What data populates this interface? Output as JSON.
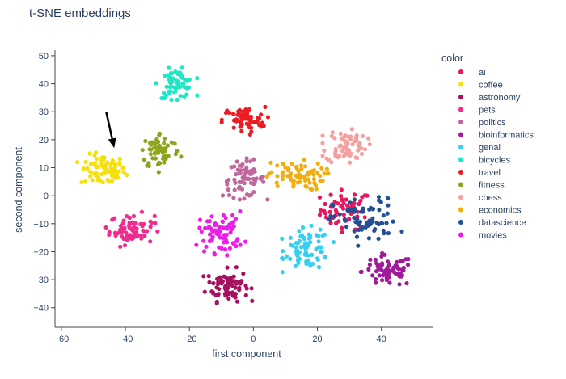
{
  "chart_data": {
    "type": "scatter",
    "title": "t-SNE embeddings",
    "xlabel": "first component",
    "ylabel": "second component",
    "xlim": [
      -62,
      56
    ],
    "ylim": [
      -47,
      52
    ],
    "xticks": [
      -60,
      -40,
      -20,
      0,
      20,
      40
    ],
    "yticks": [
      -40,
      -30,
      -20,
      -10,
      0,
      10,
      20,
      30,
      40,
      50
    ],
    "grid": false,
    "legend": {
      "title": "color",
      "position": "right"
    },
    "series": [
      {
        "name": "ai",
        "color": "#e8175d",
        "clusters": [
          {
            "cx": 29,
            "cy": -5,
            "sx": 4,
            "sy": 3.5,
            "n": 55
          }
        ]
      },
      {
        "name": "coffee",
        "color": "#f5e10a",
        "clusters": [
          {
            "cx": -47,
            "cy": 9,
            "sx": 3.5,
            "sy": 2.8,
            "n": 75
          }
        ]
      },
      {
        "name": "astronomy",
        "color": "#a5115e",
        "clusters": [
          {
            "cx": -8,
            "cy": -32,
            "sx": 3.3,
            "sy": 2.8,
            "n": 80
          }
        ]
      },
      {
        "name": "pets",
        "color": "#ee2d8f",
        "clusters": [
          {
            "cx": -38,
            "cy": -12,
            "sx": 3.5,
            "sy": 2.7,
            "n": 70
          }
        ]
      },
      {
        "name": "politics",
        "color": "#c0689e",
        "clusters": [
          {
            "cx": -3,
            "cy": 6,
            "sx": 3.3,
            "sy": 3.2,
            "n": 65
          }
        ]
      },
      {
        "name": "bioinformatics",
        "color": "#9e1b9b",
        "clusters": [
          {
            "cx": 42,
            "cy": -27,
            "sx": 4,
            "sy": 2.8,
            "n": 70
          }
        ]
      },
      {
        "name": "genai",
        "color": "#33d0f2",
        "clusters": [
          {
            "cx": 17,
            "cy": -19,
            "sx": 3.5,
            "sy": 3.6,
            "n": 75
          }
        ]
      },
      {
        "name": "bicycles",
        "color": "#1fe6c4",
        "clusters": [
          {
            "cx": -24,
            "cy": 40,
            "sx": 2.8,
            "sy": 2.5,
            "n": 65
          }
        ]
      },
      {
        "name": "travel",
        "color": "#ea1d25",
        "clusters": [
          {
            "cx": -3,
            "cy": 27,
            "sx": 3.3,
            "sy": 2.3,
            "n": 60
          }
        ]
      },
      {
        "name": "fitness",
        "color": "#8ea41f",
        "clusters": [
          {
            "cx": -29,
            "cy": 16,
            "sx": 3,
            "sy": 3.3,
            "n": 65
          }
        ]
      },
      {
        "name": "chess",
        "color": "#f3a09f",
        "clusters": [
          {
            "cx": 29,
            "cy": 18,
            "sx": 3.2,
            "sy": 3.2,
            "n": 70
          }
        ]
      },
      {
        "name": "economics",
        "color": "#f2ad0f",
        "clusters": [
          {
            "cx": 13,
            "cy": 7,
            "sx": 4.5,
            "sy": 2.5,
            "n": 70
          }
        ]
      },
      {
        "name": "datascience",
        "color": "#234f94",
        "clusters": [
          {
            "cx": 35,
            "cy": -9,
            "sx": 5,
            "sy": 4,
            "n": 70
          }
        ]
      },
      {
        "name": "movies",
        "color": "#ea1ee8",
        "clusters": [
          {
            "cx": -10,
            "cy": -13,
            "sx": 3.5,
            "sy": 3.6,
            "n": 75
          }
        ]
      }
    ],
    "annotations": [
      {
        "type": "arrow",
        "from": [
          -46,
          30
        ],
        "to": [
          -43.5,
          17
        ]
      }
    ]
  }
}
